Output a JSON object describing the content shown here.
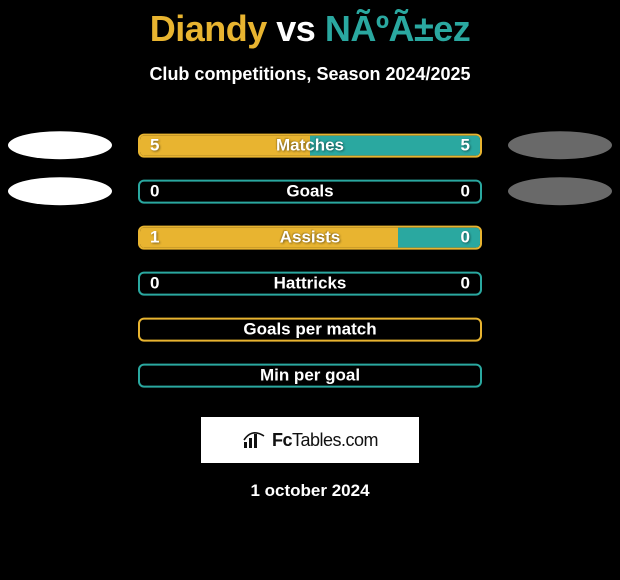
{
  "title": {
    "player1": "Diandy",
    "vs": "vs",
    "player2": "NÃºÃ±ez",
    "player1_color": "#e8b430",
    "vs_color": "#ffffff",
    "player2_color": "#2aa8a0"
  },
  "subtitle": "Club competitions, Season 2024/2025",
  "left_color": "#e8b430",
  "right_color": "#2aa8a0",
  "ellipse_left_color": "#ffffff",
  "ellipse_right_color": "#696969",
  "track_border_color_yellow": "#e8b430",
  "track_border_color_teal": "#2aa8a0",
  "logo_text_prefix": "Fc",
  "logo_text_main": "Tables",
  "logo_text_suffix": ".com",
  "date": "1 october 2024",
  "rows": [
    {
      "label": "Matches",
      "left_val": "5",
      "right_val": "5",
      "left_pct": 50,
      "right_pct": 50,
      "show_ellipses": true,
      "track_mode": "split",
      "border_color": "#e8b430"
    },
    {
      "label": "Goals",
      "left_val": "0",
      "right_val": "0",
      "left_pct": 0,
      "right_pct": 0,
      "show_ellipses": true,
      "track_mode": "split",
      "border_color": "#2aa8a0"
    },
    {
      "label": "Assists",
      "left_val": "1",
      "right_val": "0",
      "left_pct": 76,
      "right_pct": 24,
      "show_ellipses": false,
      "track_mode": "split",
      "border_color": "#e8b430"
    },
    {
      "label": "Hattricks",
      "left_val": "0",
      "right_val": "0",
      "left_pct": 0,
      "right_pct": 0,
      "show_ellipses": false,
      "track_mode": "split",
      "border_color": "#2aa8a0"
    },
    {
      "label": "Goals per match",
      "left_val": "",
      "right_val": "",
      "left_pct": 0,
      "right_pct": 0,
      "show_ellipses": false,
      "track_mode": "outline",
      "border_color": "#e8b430"
    },
    {
      "label": "Min per goal",
      "left_val": "",
      "right_val": "",
      "left_pct": 0,
      "right_pct": 0,
      "show_ellipses": false,
      "track_mode": "outline",
      "border_color": "#2aa8a0"
    }
  ]
}
